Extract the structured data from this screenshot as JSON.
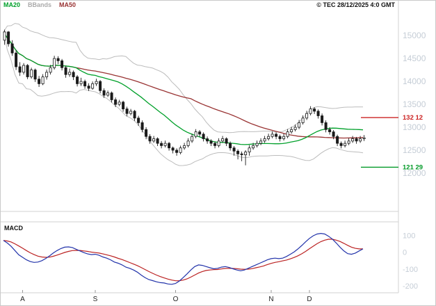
{
  "header": {
    "copyright": "© TEC 28/12/2025 4:0 GMT"
  },
  "legend": {
    "ma20": "MA20",
    "bbands": "BBands",
    "ma50": "MA50"
  },
  "macd_panel": {
    "label": "MACD",
    "y_ticks": [
      100,
      0,
      -100,
      -200
    ]
  },
  "levels": {
    "resistance": {
      "value": 13212,
      "label": "132 12"
    },
    "support": {
      "value": 12129,
      "label": "121 29"
    }
  },
  "colors": {
    "candle": "#1a1a1a",
    "ma20": "#00a02a",
    "ma50": "#993333",
    "bbands": "#bcbcbc",
    "resistance": "#cc2222",
    "support": "#009926",
    "macd_line": "#2233aa",
    "signal_line": "#bb2222",
    "axis_text": "#c5cdd6",
    "month_text": "#222222",
    "grid": "#d2d2d2"
  },
  "chart_data": {
    "type": "candlestick",
    "title": "",
    "price_y_ticks": [
      15000,
      14500,
      14000,
      13500,
      13000,
      12500,
      12000
    ],
    "price_range": [
      11210,
      15640
    ],
    "macd_range": [
      -232,
      172
    ],
    "months": [
      {
        "label": "A",
        "day": 5
      },
      {
        "label": "S",
        "day": 24
      },
      {
        "label": "O",
        "day": 45
      },
      {
        "label": "N",
        "day": 70
      },
      {
        "label": "D",
        "day": 80
      }
    ],
    "indicators": {
      "ma_short_period": 20,
      "ma_long_period": 50,
      "bollinger": "20, 2 std dev",
      "macd_params": "12,26,9"
    },
    "candles": [
      [
        14900,
        15130,
        14800,
        15080
      ],
      [
        15080,
        15100,
        14760,
        14820
      ],
      [
        14820,
        14900,
        14560,
        14620
      ],
      [
        14620,
        14680,
        14250,
        14320
      ],
      [
        14320,
        14420,
        14120,
        14200
      ],
      [
        14200,
        14400,
        14150,
        14350
      ],
      [
        14350,
        14380,
        14050,
        14100
      ],
      [
        14100,
        14300,
        14060,
        14250
      ],
      [
        14250,
        14280,
        13990,
        14050
      ],
      [
        14050,
        14120,
        13880,
        13950
      ],
      [
        13950,
        14160,
        13920,
        14100
      ],
      [
        14100,
        14260,
        14040,
        14200
      ],
      [
        14200,
        14360,
        14150,
        14300
      ],
      [
        14300,
        14560,
        14260,
        14500
      ],
      [
        14500,
        14550,
        14380,
        14450
      ],
      [
        14450,
        14490,
        14240,
        14300
      ],
      [
        14300,
        14340,
        14080,
        14150
      ],
      [
        14150,
        14280,
        14100,
        14200
      ],
      [
        14200,
        14240,
        14030,
        14100
      ],
      [
        14100,
        14140,
        13890,
        13950
      ],
      [
        13950,
        14080,
        13900,
        14000
      ],
      [
        14000,
        14040,
        13840,
        13900
      ],
      [
        13900,
        13960,
        13790,
        13850
      ],
      [
        13850,
        14000,
        13820,
        13950
      ],
      [
        13950,
        14060,
        13900,
        14000
      ],
      [
        14000,
        14030,
        13740,
        13800
      ],
      [
        13800,
        13850,
        13640,
        13700
      ],
      [
        13700,
        13800,
        13660,
        13750
      ],
      [
        13750,
        13780,
        13540,
        13600
      ],
      [
        13600,
        13650,
        13440,
        13500
      ],
      [
        13500,
        13600,
        13460,
        13550
      ],
      [
        13550,
        13580,
        13340,
        13400
      ],
      [
        13400,
        13450,
        13240,
        13300
      ],
      [
        13300,
        13400,
        13260,
        13350
      ],
      [
        13350,
        13380,
        13140,
        13200
      ],
      [
        13200,
        13250,
        13030,
        13100
      ],
      [
        13100,
        13150,
        12890,
        12950
      ],
      [
        12950,
        13000,
        12740,
        12800
      ],
      [
        12800,
        12850,
        12640,
        12700
      ],
      [
        12700,
        12810,
        12660,
        12750
      ],
      [
        12750,
        12780,
        12590,
        12650
      ],
      [
        12650,
        12700,
        12540,
        12600
      ],
      [
        12600,
        12710,
        12560,
        12650
      ],
      [
        12650,
        12680,
        12490,
        12550
      ],
      [
        12550,
        12580,
        12430,
        12500
      ],
      [
        12500,
        12540,
        12380,
        12450
      ],
      [
        12450,
        12600,
        12410,
        12550
      ],
      [
        12550,
        12660,
        12510,
        12600
      ],
      [
        12600,
        12760,
        12560,
        12700
      ],
      [
        12700,
        12860,
        12660,
        12800
      ],
      [
        12800,
        12960,
        12760,
        12900
      ],
      [
        12900,
        12940,
        12790,
        12850
      ],
      [
        12850,
        12890,
        12690,
        12750
      ],
      [
        12750,
        12800,
        12640,
        12700
      ],
      [
        12700,
        12740,
        12590,
        12650
      ],
      [
        12650,
        12690,
        12540,
        12600
      ],
      [
        12600,
        12760,
        12560,
        12700
      ],
      [
        12700,
        12810,
        12660,
        12750
      ],
      [
        12750,
        12780,
        12590,
        12650
      ],
      [
        12650,
        12690,
        12490,
        12550
      ],
      [
        12550,
        12590,
        12380,
        12480
      ],
      [
        12480,
        12520,
        12300,
        12420
      ],
      [
        12420,
        12470,
        12260,
        12400
      ],
      [
        12400,
        12500,
        12170,
        12460
      ],
      [
        12460,
        12610,
        12380,
        12550
      ],
      [
        12550,
        12660,
        12510,
        12600
      ],
      [
        12600,
        12710,
        12560,
        12650
      ],
      [
        12650,
        12760,
        12610,
        12700
      ],
      [
        12700,
        12810,
        12660,
        12750
      ],
      [
        12750,
        12860,
        12710,
        12800
      ],
      [
        12800,
        12910,
        12760,
        12850
      ],
      [
        12850,
        12890,
        12740,
        12800
      ],
      [
        12800,
        12840,
        12690,
        12750
      ],
      [
        12750,
        12860,
        12710,
        12800
      ],
      [
        12800,
        12960,
        12760,
        12900
      ],
      [
        12900,
        13010,
        12860,
        12950
      ],
      [
        12950,
        13060,
        12910,
        13000
      ],
      [
        13000,
        13160,
        12960,
        13100
      ],
      [
        13100,
        13260,
        13060,
        13200
      ],
      [
        13200,
        13360,
        13160,
        13300
      ],
      [
        13300,
        13460,
        13260,
        13400
      ],
      [
        13400,
        13440,
        13290,
        13350
      ],
      [
        13350,
        13390,
        13190,
        13250
      ],
      [
        13250,
        13300,
        13040,
        13100
      ],
      [
        13100,
        13150,
        12890,
        12950
      ],
      [
        12950,
        13000,
        12840,
        12900
      ],
      [
        12900,
        12940,
        12740,
        12800
      ],
      [
        12800,
        12840,
        12590,
        12650
      ],
      [
        12650,
        12690,
        12540,
        12600
      ],
      [
        12600,
        12710,
        12560,
        12650
      ],
      [
        12650,
        12760,
        12610,
        12700
      ],
      [
        12700,
        12810,
        12660,
        12750
      ],
      [
        12750,
        12790,
        12640,
        12700
      ],
      [
        12700,
        12810,
        12660,
        12750
      ],
      [
        12750,
        12830,
        12700,
        12770
      ]
    ],
    "macd": [
      70,
      55,
      35,
      10,
      -15,
      -30,
      -45,
      -55,
      -60,
      -58,
      -50,
      -38,
      -22,
      -5,
      10,
      22,
      30,
      32,
      28,
      18,
      8,
      -2,
      -10,
      -14,
      -12,
      -18,
      -28,
      -35,
      -45,
      -58,
      -65,
      -75,
      -88,
      -95,
      -105,
      -118,
      -135,
      -150,
      -162,
      -168,
      -175,
      -180,
      -182,
      -188,
      -190,
      -185,
      -170,
      -150,
      -128,
      -105,
      -85,
      -75,
      -78,
      -85,
      -92,
      -98,
      -95,
      -88,
      -85,
      -90,
      -98,
      -105,
      -110,
      -105,
      -95,
      -85,
      -75,
      -65,
      -55,
      -45,
      -38,
      -35,
      -38,
      -35,
      -25,
      -12,
      2,
      20,
      40,
      62,
      82,
      98,
      108,
      112,
      108,
      95,
      78,
      55,
      30,
      8,
      -8,
      -12,
      -5,
      8,
      20
    ],
    "macd_signal": [
      70,
      67,
      61,
      50,
      37,
      24,
      10,
      -3,
      -14,
      -23,
      -28,
      -30,
      -29,
      -24,
      -17,
      -9,
      -1,
      5,
      10,
      11,
      11,
      8,
      5,
      1,
      -2,
      -5,
      -10,
      -15,
      -21,
      -28,
      -36,
      -43,
      -52,
      -61,
      -70,
      -79,
      -90,
      -102,
      -114,
      -125,
      -135,
      -144,
      -152,
      -159,
      -165,
      -169,
      -169,
      -165,
      -158,
      -147,
      -135,
      -123,
      -114,
      -108,
      -105,
      -103,
      -102,
      -99,
      -96,
      -95,
      -96,
      -97,
      -100,
      -101,
      -100,
      -97,
      -92,
      -87,
      -81,
      -73,
      -66,
      -60,
      -56,
      -51,
      -46,
      -39,
      -31,
      -21,
      -9,
      5,
      21,
      36,
      51,
      63,
      72,
      77,
      77,
      72,
      64,
      53,
      41,
      30,
      23,
      20,
      20
    ]
  }
}
